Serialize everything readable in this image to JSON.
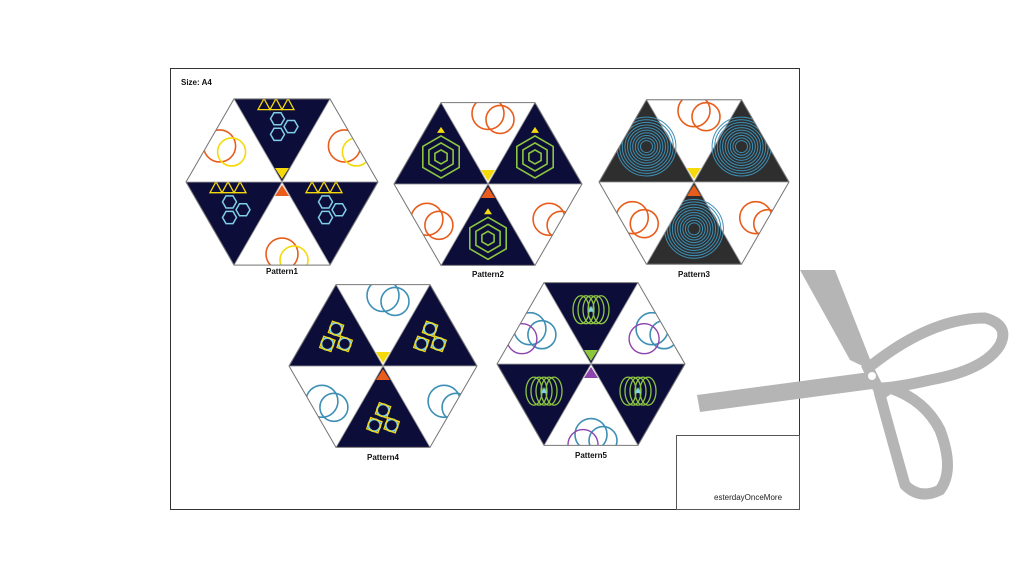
{
  "sheet": {
    "size_label": "Size: A4"
  },
  "patterns": [
    {
      "label": "Pattern1",
      "scheme": "p1",
      "colors": {
        "dark": "#0d0d3a",
        "accent": "#f5d90a",
        "alt": "#e85d1c",
        "line": "#7fcfe8"
      }
    },
    {
      "label": "Pattern2",
      "scheme": "p2",
      "colors": {
        "dark": "#0d0d3a",
        "accent": "#f5d90a",
        "alt": "#e85d1c",
        "line": "#8cc63f"
      }
    },
    {
      "label": "Pattern3",
      "scheme": "p3",
      "colors": {
        "dark": "#2e2e2e",
        "accent": "#f5d90a",
        "alt": "#e85d1c",
        "line": "#3d8fb5"
      }
    },
    {
      "label": "Pattern4",
      "scheme": "p4",
      "colors": {
        "dark": "#0d0d3a",
        "accent": "#f5d90a",
        "alt": "#e85d1c",
        "line": "#7fcfe8"
      }
    },
    {
      "label": "Pattern5",
      "scheme": "p5",
      "colors": {
        "dark": "#0d0d3a",
        "accent": "#8cc63f",
        "alt": "#8e44ad",
        "line": "#8cc63f"
      }
    }
  ],
  "logo": {
    "text": "esterdayOnceMore",
    "tree_color": "#a8cf45",
    "icon": "tree-icon"
  },
  "scissors": {
    "color": "#b5b5b5",
    "icon": "scissors-icon"
  }
}
